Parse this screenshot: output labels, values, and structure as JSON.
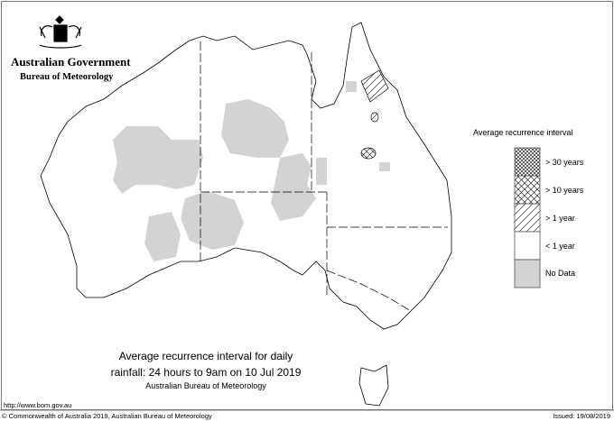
{
  "header": {
    "government": "Australian Government",
    "agency": "Bureau of Meteorology",
    "logo": "commonwealth-coat-of-arms"
  },
  "map": {
    "title_line1": "Average recurrence interval for daily",
    "title_line2": "rainfall: 24 hours to 9am on 10 Jul 2019",
    "subtitle": "Australian Bureau of Meteorology"
  },
  "legend": {
    "title": "Average recurrence interval",
    "items": [
      {
        "label": "> 30 years",
        "pattern": "fine-crosshatch"
      },
      {
        "label": "> 10 years",
        "pattern": "crosshatch"
      },
      {
        "label": "> 1 year",
        "pattern": "diagonal-hatch"
      },
      {
        "label": "< 1 year",
        "pattern": "white"
      },
      {
        "label": "No Data",
        "pattern": "grey",
        "color": "#d3d3d3"
      }
    ]
  },
  "footer": {
    "url": "http://www.bom.gov.au",
    "copyright": "© Commonwealth of Australia 2019, Australian Bureau of Meteorology",
    "issued": "Issued: 19/08/2019"
  }
}
